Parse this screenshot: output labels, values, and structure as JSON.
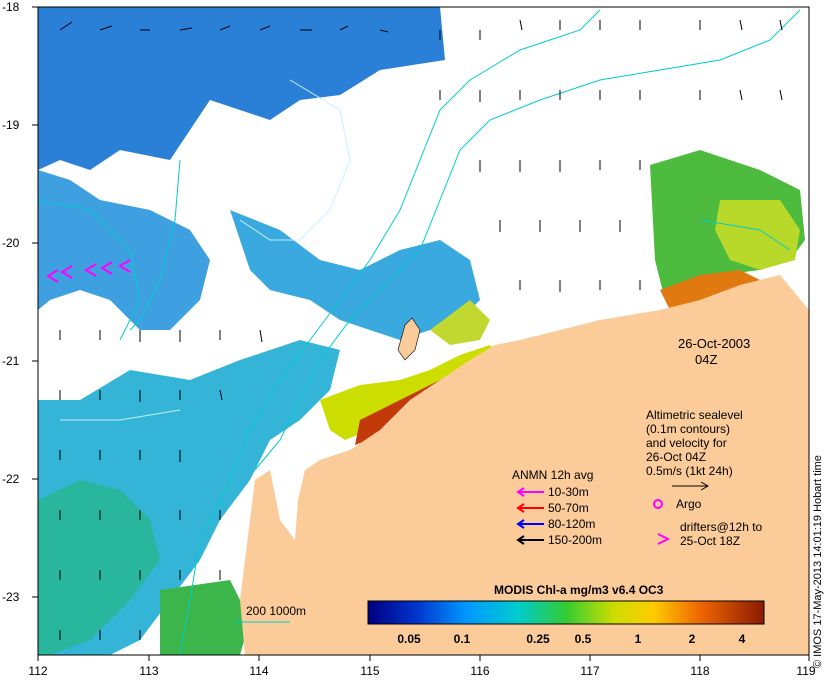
{
  "map": {
    "x_axis_ticks": [
      "112",
      "113",
      "114",
      "115",
      "116",
      "117",
      "118",
      "119"
    ],
    "y_axis_ticks": [
      "-18",
      "-19",
      "-20",
      "-21",
      "-22",
      "-23"
    ],
    "date": "26-Oct-2003",
    "time": "04Z",
    "altimetry_note": [
      "Altimetric sealevel",
      "(0.1m contours)",
      "and velocity for",
      "26-Oct 04Z",
      "0.5m/s (1kt 24h)"
    ],
    "anmn_legend": {
      "title": "ANMN 12h avg",
      "items": [
        {
          "label": "10-30m",
          "color": "#ff00ff"
        },
        {
          "label": "50-70m",
          "color": "#ff0000"
        },
        {
          "label": "80-120m",
          "color": "#0000ff"
        },
        {
          "label": "150-200m",
          "color": "#000000"
        }
      ]
    },
    "argo_label": "Argo",
    "drifters_label": [
      "drifters@12h to",
      "25-Oct 18Z"
    ],
    "bathymetry_label": "200  1000m",
    "colorbar": {
      "title": "MODIS Chl-a mg/m3 v6.4 OC3",
      "ticks": [
        "0.05",
        "0.1",
        "0.25",
        "0.5",
        "1",
        "2",
        "4"
      ]
    },
    "credit": "© IMOS 17-May-2013 14:01:19 Hobart time",
    "colors": {
      "land": "#fbcb9a",
      "contour": "#00cccc",
      "marker": "#ff00ff"
    }
  }
}
